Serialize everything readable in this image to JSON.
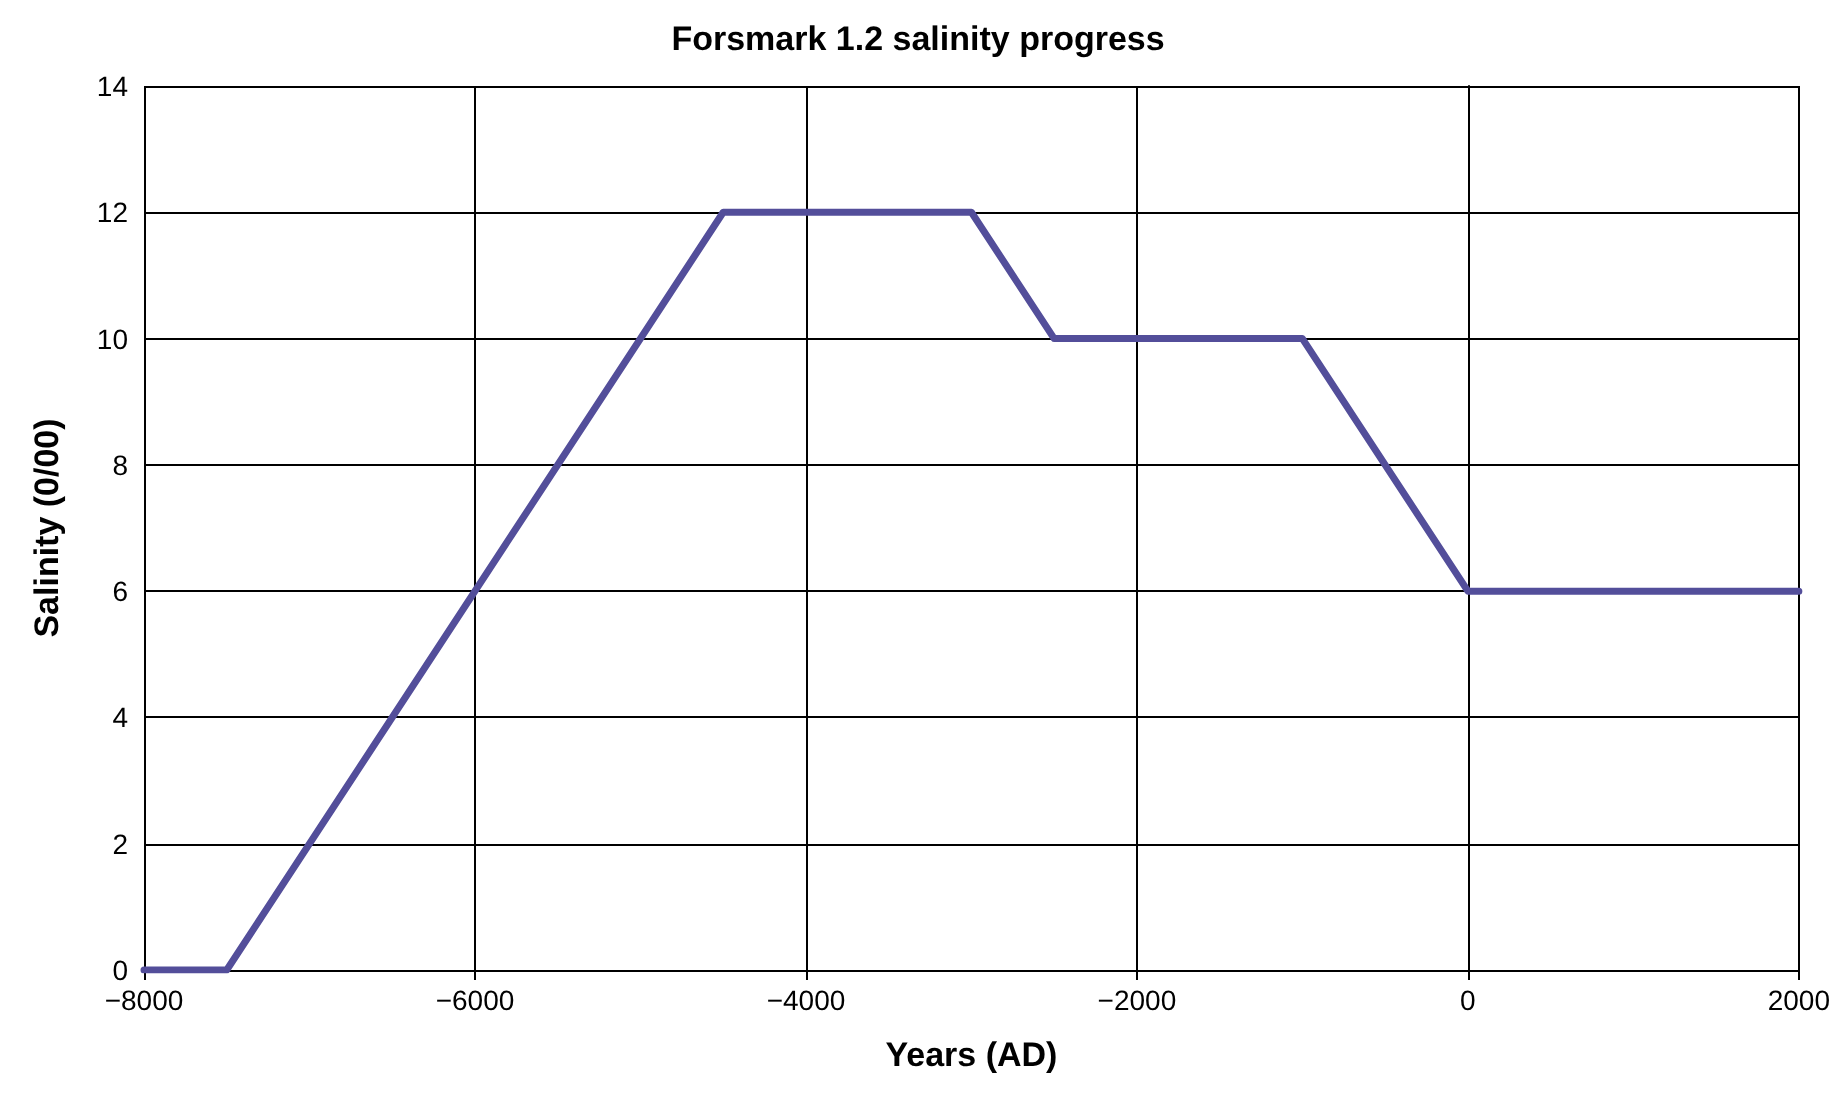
{
  "chart_data": {
    "type": "line",
    "title": "Forsmark 1.2 salinity progress",
    "xlabel": "Years (AD)",
    "ylabel": "Salinity (0/00)",
    "x": [
      -8000,
      -7500,
      -4500,
      -3000,
      -2500,
      -1000,
      0,
      2000
    ],
    "series": [
      {
        "color": "#534e9a",
        "values": [
          0,
          0,
          12,
          12,
          10,
          10,
          6,
          6
        ]
      }
    ],
    "xlim": [
      -8000,
      2000
    ],
    "xticks": [
      {
        "value": -8000,
        "label": "−8000"
      },
      {
        "value": -6000,
        "label": "−6000"
      },
      {
        "value": -4000,
        "label": "−4000"
      },
      {
        "value": -2000,
        "label": "−2000"
      },
      0,
      2000
    ],
    "ylim": [
      0,
      14
    ],
    "yticks": [
      0,
      2,
      4,
      6,
      8,
      10,
      12,
      14
    ],
    "grid": true,
    "marker": "none",
    "line_style": "solid"
  }
}
